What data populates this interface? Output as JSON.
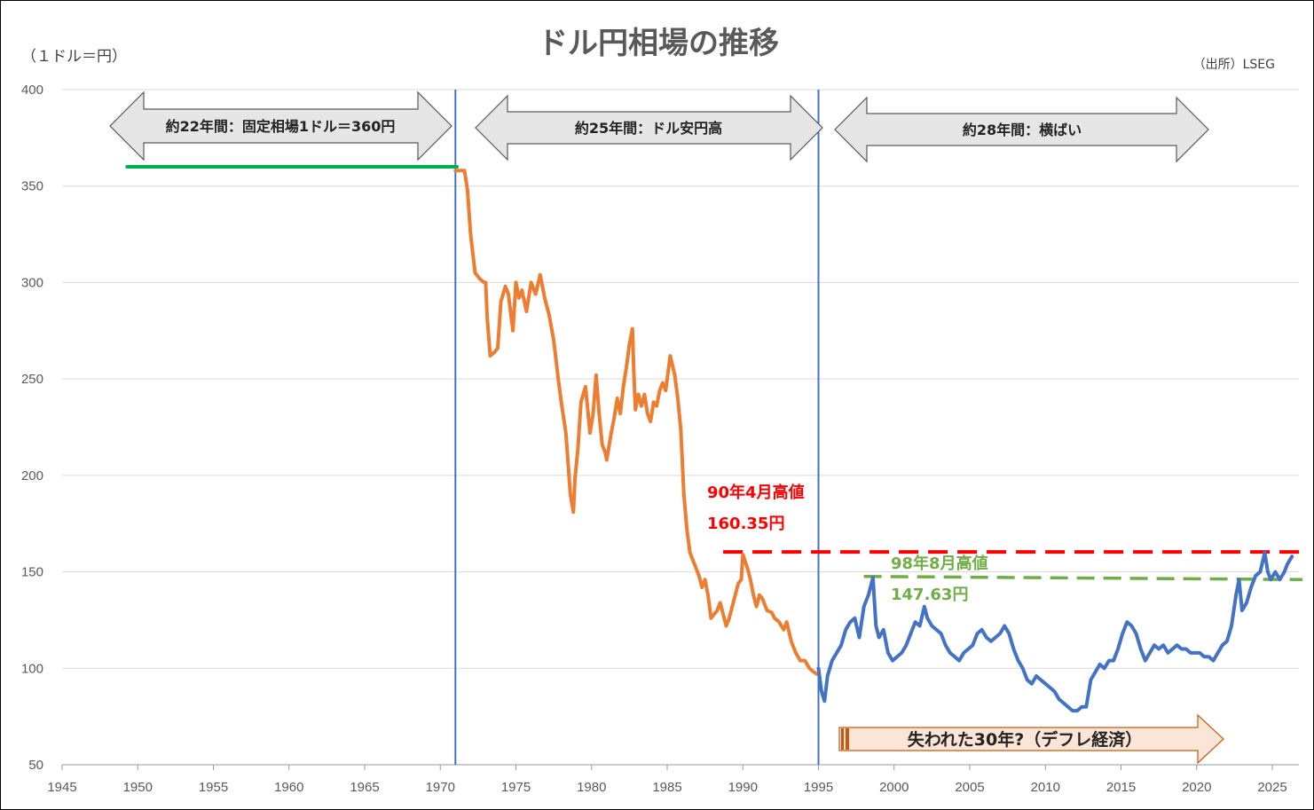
{
  "chart_data": {
    "type": "line",
    "title": "ドル円相場の推移",
    "unit_label": "（１ドル＝円）",
    "source": "（出所）LSEG",
    "xlabel": "",
    "ylabel": "",
    "xlim": [
      1945,
      2027
    ],
    "ylim": [
      50,
      400
    ],
    "x_ticks": [
      "1945",
      "1950",
      "1955",
      "1960",
      "1965",
      "1970",
      "1975",
      "1980",
      "1985",
      "1990",
      "1995",
      "2000",
      "2005",
      "2010",
      "2015",
      "2020",
      "2025"
    ],
    "y_ticks": [
      "50",
      "100",
      "150",
      "200",
      "250",
      "300",
      "350",
      "400"
    ],
    "grid": true,
    "legend": "none",
    "colors": {
      "fixed": "#00B050",
      "float_orange": "#ED7D31",
      "float_blue": "#4472C4",
      "divider": "#4472C4",
      "high1990": "#FF0000",
      "high1998": "#70AD47",
      "arrow_fill": "#E7E6E6",
      "lost_fill": "#FBE5D6",
      "lost_border": "#C55A11"
    },
    "series": [
      {
        "segment": "fixed",
        "x": [
          1949.3,
          1971.1
        ],
        "y": [
          360,
          360
        ]
      },
      {
        "segment": "float_orange",
        "x": [
          1971.0,
          1971.6,
          1971.8,
          1972.0,
          1972.3,
          1972.6,
          1972.9,
          1973.0,
          1973.1,
          1973.3,
          1973.6,
          1973.8,
          1974.0,
          1974.3,
          1974.5,
          1974.8,
          1975.0,
          1975.2,
          1975.4,
          1975.7,
          1976.0,
          1976.3,
          1976.6,
          1976.9,
          1977.2,
          1977.5,
          1977.8,
          1978.0,
          1978.3,
          1978.6,
          1978.8,
          1978.9,
          1979.1,
          1979.3,
          1979.6,
          1979.9,
          1980.1,
          1980.3,
          1980.5,
          1980.7,
          1980.9,
          1981.0,
          1981.3,
          1981.5,
          1981.7,
          1981.9,
          1982.1,
          1982.3,
          1982.5,
          1982.7,
          1982.8,
          1982.9,
          1983.1,
          1983.3,
          1983.5,
          1983.7,
          1983.9,
          1984.1,
          1984.3,
          1984.5,
          1984.7,
          1984.9,
          1985.1,
          1985.2,
          1985.5,
          1985.7,
          1985.9,
          1986.1,
          1986.3,
          1986.5,
          1986.7,
          1986.9,
          1987.1,
          1987.3,
          1987.5,
          1987.7,
          1987.9,
          1988.1,
          1988.3,
          1988.5,
          1988.7,
          1988.9,
          1989.1,
          1989.3,
          1989.5,
          1989.7,
          1989.9,
          1990.0,
          1990.3,
          1990.5,
          1990.7,
          1990.9,
          1991.1,
          1991.3,
          1991.6,
          1991.9,
          1992.1,
          1992.4,
          1992.7,
          1992.9,
          1993.2,
          1993.5,
          1993.8,
          1994.1,
          1994.4,
          1994.7,
          1994.9
        ],
        "y": [
          358,
          358,
          348,
          325,
          305,
          302,
          300,
          300,
          282,
          262,
          264,
          266,
          290,
          298,
          294,
          275,
          300,
          292,
          296,
          285,
          300,
          294,
          304,
          292,
          283,
          270,
          250,
          238,
          222,
          190,
          181,
          198,
          214,
          238,
          246,
          222,
          232,
          252,
          232,
          216,
          212,
          208,
          222,
          230,
          240,
          232,
          246,
          256,
          268,
          276,
          252,
          234,
          242,
          236,
          242,
          232,
          228,
          238,
          236,
          244,
          248,
          244,
          256,
          262,
          252,
          240,
          224,
          190,
          172,
          160,
          156,
          152,
          148,
          142,
          146,
          138,
          126,
          128,
          130,
          134,
          128,
          122,
          126,
          132,
          138,
          144,
          146,
          159,
          152,
          146,
          138,
          132,
          138,
          136,
          130,
          129,
          126,
          124,
          120,
          124,
          114,
          108,
          104,
          104,
          100,
          98,
          97
        ]
      },
      {
        "segment": "float_blue",
        "x": [
          1995.0,
          1995.2,
          1995.4,
          1995.6,
          1995.9,
          1996.2,
          1996.5,
          1996.8,
          1997.1,
          1997.4,
          1997.7,
          1998.0,
          1998.3,
          1998.6,
          1998.8,
          1999.0,
          1999.3,
          1999.6,
          1999.9,
          2000.2,
          2000.5,
          2000.8,
          2001.1,
          2001.4,
          2001.7,
          2002.0,
          2002.2,
          2002.5,
          2002.8,
          2003.1,
          2003.4,
          2003.7,
          2004.0,
          2004.3,
          2004.6,
          2004.9,
          2005.2,
          2005.5,
          2005.8,
          2006.1,
          2006.4,
          2006.7,
          2007.0,
          2007.3,
          2007.6,
          2007.9,
          2008.2,
          2008.5,
          2008.8,
          2009.1,
          2009.4,
          2009.7,
          2010.0,
          2010.3,
          2010.6,
          2010.9,
          2011.2,
          2011.5,
          2011.8,
          2012.1,
          2012.4,
          2012.7,
          2013.0,
          2013.3,
          2013.6,
          2013.9,
          2014.2,
          2014.5,
          2014.8,
          2015.1,
          2015.4,
          2015.7,
          2016.0,
          2016.3,
          2016.6,
          2016.9,
          2017.2,
          2017.5,
          2017.8,
          2018.1,
          2018.4,
          2018.7,
          2019.0,
          2019.3,
          2019.6,
          2019.9,
          2020.2,
          2020.5,
          2020.8,
          2021.1,
          2021.4,
          2021.7,
          2022.0,
          2022.3,
          2022.6,
          2022.8,
          2023.0,
          2023.3,
          2023.6,
          2023.9,
          2024.2,
          2024.5,
          2024.7,
          2024.9,
          2025.2,
          2025.5,
          2025.8,
          2026.0,
          2026.3
        ],
        "y": [
          100,
          88,
          83,
          96,
          104,
          108,
          112,
          120,
          124,
          126,
          116,
          132,
          138,
          147,
          122,
          116,
          120,
          108,
          104,
          106,
          108,
          112,
          118,
          124,
          122,
          132,
          126,
          122,
          120,
          118,
          112,
          108,
          106,
          104,
          108,
          110,
          112,
          118,
          120,
          116,
          114,
          116,
          118,
          122,
          118,
          110,
          104,
          100,
          94,
          92,
          96,
          94,
          92,
          90,
          88,
          84,
          82,
          80,
          78,
          78,
          80,
          80,
          94,
          98,
          102,
          100,
          104,
          104,
          110,
          118,
          124,
          122,
          118,
          110,
          104,
          108,
          112,
          110,
          112,
          108,
          110,
          112,
          110,
          110,
          108,
          108,
          108,
          106,
          106,
          104,
          108,
          112,
          114,
          122,
          138,
          146,
          130,
          134,
          142,
          148,
          150,
          160,
          150,
          146,
          150,
          146,
          150,
          154,
          158
        ]
      }
    ],
    "dividers": [
      1971,
      1995
    ],
    "reference_lines": [
      {
        "name": "high1990",
        "y": 160.35,
        "x": [
          1988.7,
          2027
        ]
      },
      {
        "name": "high1998",
        "y": 147.63,
        "y_end": 146.0,
        "x": [
          1998.0,
          2027
        ]
      }
    ],
    "annotations": {
      "period1": "約22年間：固定相場1ドル＝360円",
      "period2": "約25年間：ドル安円高",
      "period3": "約28年間：横ばい",
      "high1990_label": "90年4月高値",
      "high1990_value": "160.35円",
      "high1998_label": "98年8月高値",
      "high1998_value": "147.63円",
      "lost": "失われた30年?（デフレ経済）"
    }
  }
}
